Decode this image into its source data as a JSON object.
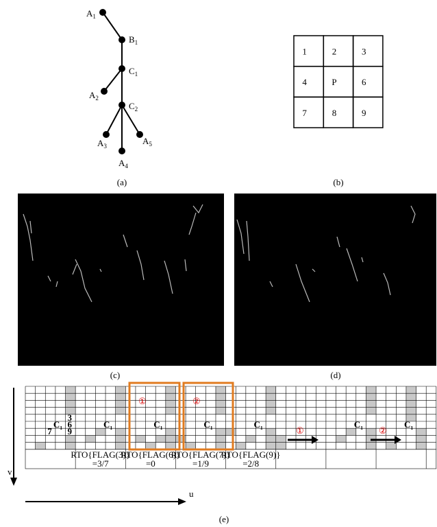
{
  "panel_a": {
    "caption": "(a)",
    "nodes": [
      {
        "name": "A",
        "sub": "1"
      },
      {
        "name": "B",
        "sub": "1"
      },
      {
        "name": "C",
        "sub": "1"
      },
      {
        "name": "A",
        "sub": "2"
      },
      {
        "name": "C",
        "sub": "2"
      },
      {
        "name": "A",
        "sub": "3"
      },
      {
        "name": "A",
        "sub": "5"
      },
      {
        "name": "A",
        "sub": "4"
      }
    ]
  },
  "panel_b": {
    "caption": "(b)",
    "cells": [
      "1",
      "2",
      "3",
      "4",
      "P",
      "6",
      "7",
      "8",
      "9"
    ]
  },
  "panel_c": {
    "caption": "(c)"
  },
  "panel_d": {
    "caption": "(d)"
  },
  "panel_e": {
    "caption": "(e)",
    "axis_v": "v",
    "axis_u": "u",
    "neighbor_labels": [
      "3",
      "6",
      "9",
      "7"
    ],
    "center_label": {
      "name": "C",
      "sub": "1"
    },
    "markers": [
      "①",
      "②"
    ],
    "rto": [
      {
        "expr": "RTO{FLAG(3)}",
        "value": "=3/7"
      },
      {
        "expr": "RTO{FLAG(6)}",
        "value": "=0"
      },
      {
        "expr": "RTO{FLAG(7)}",
        "value": "=1/9"
      },
      {
        "expr": "RTO{FLAG(9)}",
        "value": "=2/8"
      }
    ]
  }
}
